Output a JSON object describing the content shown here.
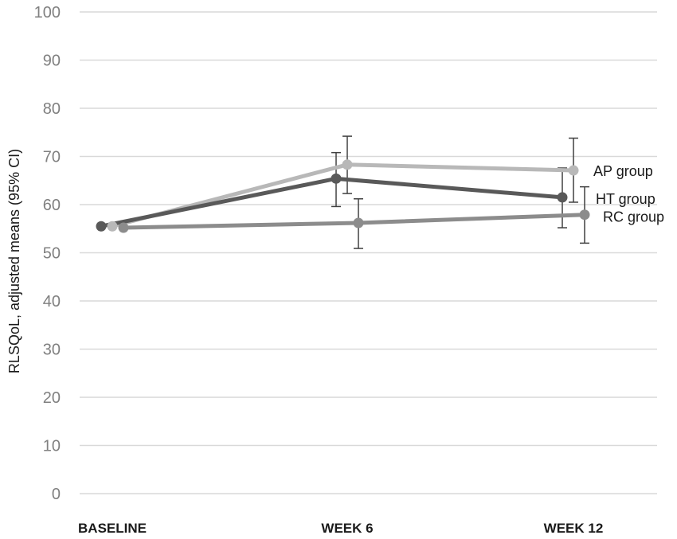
{
  "chart_data": {
    "type": "line",
    "ylabel": "RLSQoL, adjusted means (95% CI)",
    "categories": [
      "BASELINE",
      "WEEK 6",
      "WEEK 12"
    ],
    "ylim": [
      0,
      100
    ],
    "yticks": [
      "0",
      "10",
      "20",
      "30",
      "40",
      "50",
      "60",
      "70",
      "80",
      "90",
      "100"
    ],
    "grid": true,
    "series": [
      {
        "name": "AP group",
        "color": "#b8b8b8",
        "values": [
          55.5,
          68.3,
          67.1
        ],
        "ci_lower": [
          null,
          62.3,
          60.5
        ],
        "ci_upper": [
          null,
          74.2,
          73.8
        ]
      },
      {
        "name": "HT group",
        "color": "#595959",
        "values": [
          55.5,
          65.4,
          61.5
        ],
        "ci_lower": [
          null,
          59.6,
          55.2
        ],
        "ci_upper": [
          null,
          70.8,
          67.6
        ]
      },
      {
        "name": "RC group",
        "color": "#8c8c8c",
        "values": [
          55.2,
          56.2,
          57.9
        ],
        "ci_lower": [
          null,
          50.9,
          52.0
        ],
        "ci_upper": [
          null,
          61.2,
          63.7
        ]
      }
    ]
  }
}
